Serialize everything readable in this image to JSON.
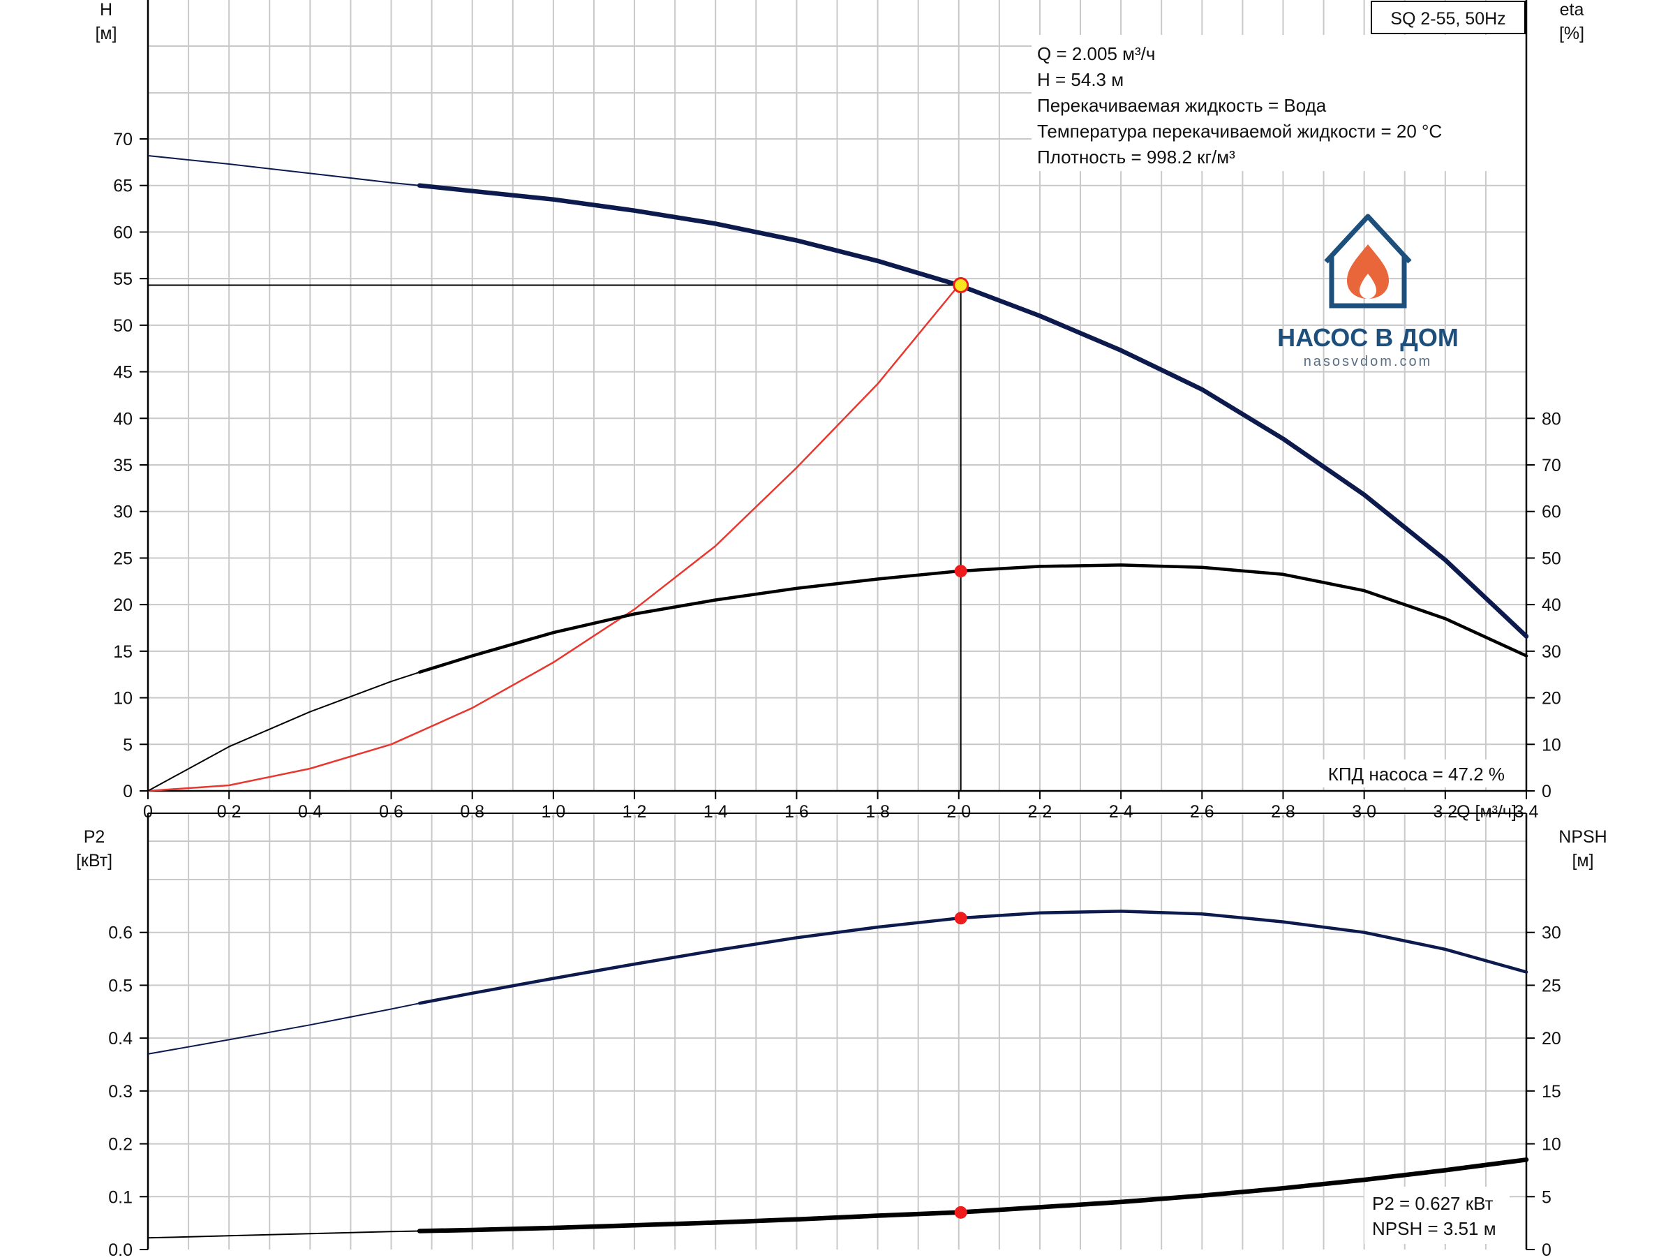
{
  "model_box": "SQ 2-55, 50Hz",
  "info_lines": [
    "Q = 2.005 м³/ч",
    "H = 54.3 м",
    "Перекачиваемая жидкость = Вода",
    "Температура перекачиваемой жидкости = 20 °C",
    "Плотность = 998.2 кг/м³"
  ],
  "efficiency_note": "КПД насоса = 47.2 %",
  "bottom_notes": [
    "P2 = 0.627 кВт",
    "NPSH = 3.51 м"
  ],
  "logo": {
    "title": "НАСОС В ДОМ",
    "site": "nasosvdom.com",
    "icon": "house-flame-icon",
    "color": "#1d4f7d",
    "flame_color": "#e8663a"
  },
  "colors": {
    "head_curve": "#0d1a4d",
    "eta_curve": "#000000",
    "system_curve": "#e8372f",
    "p2_curve": "#0d1a4d",
    "npsh_curve": "#000000",
    "op_point_head": "#f6e51f",
    "op_point_marker": "#ee1c1c",
    "grid": "#c9c9c9"
  },
  "chart_data": [
    {
      "type": "line",
      "title": "",
      "x_axis": {
        "label": "Q [м³/ч]",
        "ticks": [
          "0",
          "0,2",
          "0,4",
          "0,6",
          "0,8",
          "1,0",
          "1,2",
          "1,4",
          "1,6",
          "1,8",
          "2,0",
          "2,2",
          "2,4",
          "2,6",
          "2,8",
          "3,0",
          "3,2",
          "3,4"
        ],
        "range": [
          0,
          3.4
        ]
      },
      "y_left": {
        "label": "H",
        "unit": "[м]",
        "range": [
          0,
          70
        ],
        "ticks": [
          0,
          5,
          10,
          15,
          20,
          25,
          30,
          35,
          40,
          45,
          50,
          55,
          60,
          65,
          70
        ]
      },
      "y_right": {
        "label": "eta",
        "unit": "[%]",
        "range": [
          0,
          140
        ],
        "ticks": [
          0,
          10,
          20,
          30,
          40,
          50,
          60,
          70,
          80
        ]
      },
      "series": [
        {
          "axis": "left",
          "x": [
            0,
            0.2,
            0.4,
            0.6,
            0.67,
            0.8,
            1.0,
            1.2,
            1.4,
            1.6,
            1.8,
            2.0,
            2.2,
            2.4,
            2.6,
            2.8,
            3.0,
            3.2,
            3.4
          ],
          "y": [
            68.2,
            67.3,
            66.3,
            65.3,
            65.0,
            64.4,
            63.5,
            62.3,
            60.9,
            59.1,
            56.9,
            54.3,
            51.0,
            47.3,
            43.1,
            37.8,
            31.8,
            24.8,
            16.6
          ]
        },
        {
          "axis": "right",
          "x": [
            0,
            0.2,
            0.4,
            0.6,
            0.67,
            0.8,
            1.0,
            1.2,
            1.4,
            1.6,
            1.8,
            2.0,
            2.2,
            2.4,
            2.6,
            2.8,
            3.0,
            3.2,
            3.4
          ],
          "y": [
            0,
            9.5,
            17,
            23.5,
            25.5,
            29,
            34,
            38,
            41,
            43.5,
            45.5,
            47.2,
            48.2,
            48.5,
            48,
            46.5,
            43,
            37,
            29
          ]
        },
        {
          "axis": "left",
          "x": [
            0,
            0.2,
            0.4,
            0.6,
            0.8,
            1.0,
            1.2,
            1.4,
            1.6,
            1.8,
            2.0
          ],
          "y": [
            0,
            0.6,
            2.4,
            5.0,
            8.9,
            13.8,
            19.5,
            26.3,
            34.7,
            43.7,
            54.3
          ]
        }
      ],
      "operating_point": {
        "q": 2.005,
        "h": 54.3,
        "eta": 47.2
      }
    },
    {
      "type": "line",
      "title": "",
      "x_axis": {
        "range": [
          0,
          3.4
        ]
      },
      "y_left": {
        "label": "P2",
        "unit": "[кВт]",
        "range": [
          0,
          0.7
        ],
        "ticks": [
          "0.0",
          "0.1",
          "0.2",
          "0.3",
          "0.4",
          "0.5",
          "0.6"
        ]
      },
      "y_right": {
        "label": "NPSH",
        "unit": "[м]",
        "range": [
          0,
          35
        ],
        "ticks": [
          0,
          5,
          10,
          15,
          20,
          25,
          30
        ]
      },
      "series": [
        {
          "axis": "left",
          "x": [
            0,
            0.2,
            0.4,
            0.6,
            0.67,
            0.8,
            1.0,
            1.2,
            1.4,
            1.6,
            1.8,
            2.0,
            2.2,
            2.4,
            2.6,
            2.8,
            3.0,
            3.2,
            3.4
          ],
          "y": [
            0.37,
            0.397,
            0.425,
            0.455,
            0.466,
            0.485,
            0.513,
            0.54,
            0.566,
            0.59,
            0.61,
            0.627,
            0.637,
            0.64,
            0.635,
            0.62,
            0.6,
            0.568,
            0.525
          ]
        },
        {
          "axis": "right",
          "x": [
            0,
            0.2,
            0.4,
            0.6,
            0.67,
            0.8,
            1.0,
            1.2,
            1.4,
            1.6,
            1.8,
            2.0,
            2.2,
            2.4,
            2.6,
            2.8,
            3.0,
            3.2,
            3.4
          ],
          "y": [
            1.1,
            1.3,
            1.5,
            1.7,
            1.75,
            1.85,
            2.05,
            2.3,
            2.55,
            2.85,
            3.2,
            3.51,
            4.0,
            4.5,
            5.1,
            5.8,
            6.6,
            7.5,
            8.5
          ]
        }
      ],
      "operating_point": {
        "q": 2.005,
        "p2": 0.627,
        "npsh": 3.51
      }
    }
  ]
}
